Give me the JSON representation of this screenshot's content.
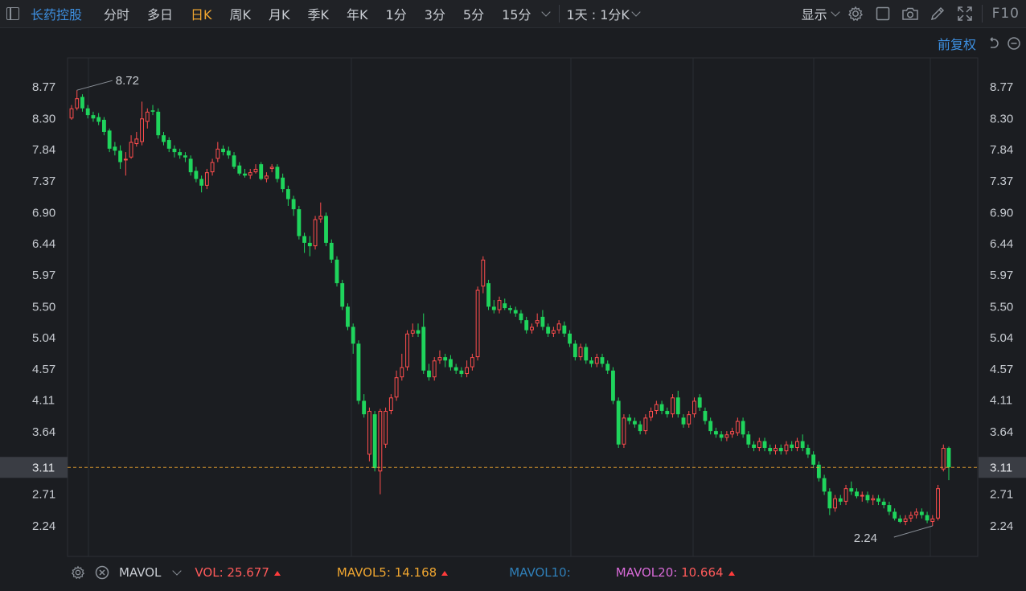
{
  "toolbar": {
    "stock_name": "长药控股",
    "tabs": [
      "分时",
      "多日",
      "日K",
      "周K",
      "月K",
      "季K",
      "年K",
      "1分",
      "3分",
      "5分",
      "15分"
    ],
    "active_tab": "日K",
    "interval_select": "1天 : 1分K",
    "display_label": "显示",
    "f10_label": "F10"
  },
  "subbar": {
    "adjust_label": "前复权"
  },
  "price_axis": {
    "ticks": [
      "8.77",
      "8.30",
      "7.84",
      "7.37",
      "6.90",
      "6.44",
      "5.97",
      "5.50",
      "5.04",
      "4.57",
      "4.11",
      "3.64",
      "3.11",
      "2.71",
      "2.24"
    ],
    "current_price": "3.11"
  },
  "annotations": {
    "high_label": "8.72",
    "low_label": "2.24"
  },
  "volume": {
    "indicator_name": "MAVOL",
    "vol_label": "VOL:",
    "vol_value": "25.677",
    "mavol5_label": "MAVOL5:",
    "mavol5_value": "14.168",
    "mavol10_label": "MAVOL10:",
    "mavol20_label": "MAVOL20:",
    "mavol20_value": "10.664"
  },
  "colors": {
    "up": "#ff4d4d",
    "down": "#1fd45c",
    "accent": "#f0a630",
    "link": "#3d8fe0",
    "vol": "#ff5a5a",
    "mavol5": "#f0a630",
    "mavol10": "#2f7fb8",
    "mavol20": "#d86ad8"
  },
  "chart_data": {
    "type": "candlestick",
    "y_range": [
      2.0,
      8.95
    ],
    "high_marker": 8.72,
    "low_marker": 2.24,
    "last_price": 3.11,
    "candles": [
      [
        8.3,
        8.45,
        8.5,
        8.28
      ],
      [
        8.45,
        8.6,
        8.72,
        8.42
      ],
      [
        8.62,
        8.45,
        8.66,
        8.4
      ],
      [
        8.45,
        8.35,
        8.5,
        8.3
      ],
      [
        8.35,
        8.3,
        8.4,
        8.25
      ],
      [
        8.32,
        8.25,
        8.38,
        8.2
      ],
      [
        8.28,
        8.1,
        8.32,
        8.05
      ],
      [
        8.12,
        7.85,
        8.15,
        7.8
      ],
      [
        7.88,
        7.82,
        7.95,
        7.75
      ],
      [
        7.82,
        7.65,
        7.9,
        7.55
      ],
      [
        7.68,
        7.7,
        7.8,
        7.45
      ],
      [
        7.72,
        7.95,
        8.05,
        7.7
      ],
      [
        7.92,
        8.0,
        8.1,
        7.88
      ],
      [
        7.95,
        8.3,
        8.55,
        7.9
      ],
      [
        8.25,
        8.4,
        8.45,
        8.15
      ],
      [
        8.42,
        8.4,
        8.5,
        8.35
      ],
      [
        8.4,
        8.05,
        8.45,
        8.0
      ],
      [
        8.05,
        7.95,
        8.1,
        7.9
      ],
      [
        7.98,
        7.85,
        8.02,
        7.8
      ],
      [
        7.85,
        7.8,
        7.9,
        7.72
      ],
      [
        7.8,
        7.75,
        7.85,
        7.7
      ],
      [
        7.75,
        7.72,
        7.8,
        7.65
      ],
      [
        7.7,
        7.5,
        7.75,
        7.45
      ],
      [
        7.52,
        7.4,
        7.58,
        7.35
      ],
      [
        7.4,
        7.3,
        7.45,
        7.2
      ],
      [
        7.3,
        7.5,
        7.55,
        7.25
      ],
      [
        7.5,
        7.65,
        7.7,
        7.45
      ],
      [
        7.7,
        7.85,
        7.95,
        7.65
      ],
      [
        7.85,
        7.8,
        7.9,
        7.75
      ],
      [
        7.82,
        7.75,
        7.88,
        7.7
      ],
      [
        7.75,
        7.58,
        7.8,
        7.55
      ],
      [
        7.6,
        7.48,
        7.65,
        7.45
      ],
      [
        7.48,
        7.45,
        7.55,
        7.42
      ],
      [
        7.45,
        7.5,
        7.55,
        7.4
      ],
      [
        7.5,
        7.55,
        7.62,
        7.48
      ],
      [
        7.62,
        7.4,
        7.65,
        7.38
      ],
      [
        7.4,
        7.45,
        7.5,
        7.35
      ],
      [
        7.55,
        7.58,
        7.62,
        7.5
      ],
      [
        7.58,
        7.4,
        7.62,
        7.35
      ],
      [
        7.42,
        7.25,
        7.48,
        7.2
      ],
      [
        7.25,
        7.1,
        7.3,
        7.0
      ],
      [
        7.1,
        6.95,
        7.15,
        6.85
      ],
      [
        6.95,
        6.55,
        7.0,
        6.5
      ],
      [
        6.55,
        6.45,
        6.6,
        6.3
      ],
      [
        6.45,
        6.4,
        6.55,
        6.25
      ],
      [
        6.4,
        6.8,
        6.85,
        6.35
      ],
      [
        6.8,
        6.85,
        7.05,
        6.75
      ],
      [
        6.85,
        6.45,
        6.9,
        6.4
      ],
      [
        6.45,
        6.2,
        6.5,
        6.15
      ],
      [
        6.2,
        5.85,
        6.25,
        5.8
      ],
      [
        5.85,
        5.5,
        5.9,
        5.45
      ],
      [
        5.5,
        5.2,
        5.55,
        5.15
      ],
      [
        5.2,
        4.95,
        5.25,
        4.8
      ],
      [
        4.95,
        4.1,
        5.0,
        4.05
      ],
      [
        4.1,
        3.9,
        4.2,
        3.85
      ],
      [
        3.3,
        3.95,
        4.0,
        3.2
      ],
      [
        3.9,
        3.1,
        3.95,
        3.05
      ],
      [
        3.05,
        3.95,
        3.98,
        2.71
      ],
      [
        3.45,
        3.95,
        4.0,
        3.4
      ],
      [
        3.95,
        4.15,
        4.2,
        3.9
      ],
      [
        4.15,
        4.45,
        4.55,
        4.1
      ],
      [
        4.45,
        4.6,
        4.8,
        4.4
      ],
      [
        4.6,
        5.1,
        5.15,
        4.55
      ],
      [
        5.1,
        5.15,
        5.25,
        5.05
      ],
      [
        5.15,
        5.1,
        5.25,
        5.05
      ],
      [
        5.2,
        4.55,
        5.4,
        4.5
      ],
      [
        4.55,
        4.45,
        4.65,
        4.4
      ],
      [
        4.45,
        4.7,
        4.75,
        4.4
      ],
      [
        4.7,
        4.75,
        4.85,
        4.65
      ],
      [
        4.75,
        4.7,
        4.8,
        4.6
      ],
      [
        4.72,
        4.6,
        4.78,
        4.55
      ],
      [
        4.6,
        4.55,
        4.65,
        4.5
      ],
      [
        4.55,
        4.5,
        4.6,
        4.45
      ],
      [
        4.5,
        4.6,
        4.7,
        4.45
      ],
      [
        4.6,
        4.75,
        4.8,
        4.55
      ],
      [
        4.75,
        5.75,
        5.8,
        4.7
      ],
      [
        5.8,
        6.2,
        6.25,
        5.7
      ],
      [
        5.85,
        5.5,
        5.9,
        5.45
      ],
      [
        5.5,
        5.45,
        5.6,
        5.4
      ],
      [
        5.45,
        5.6,
        5.65,
        5.4
      ],
      [
        5.55,
        5.48,
        5.62,
        5.45
      ],
      [
        5.48,
        5.45,
        5.52,
        5.4
      ],
      [
        5.45,
        5.4,
        5.5,
        5.35
      ],
      [
        5.4,
        5.3,
        5.45,
        5.25
      ],
      [
        5.3,
        5.15,
        5.35,
        5.1
      ],
      [
        5.15,
        5.2,
        5.25,
        5.1
      ],
      [
        5.25,
        5.3,
        5.4,
        5.2
      ],
      [
        5.35,
        5.2,
        5.45,
        5.15
      ],
      [
        5.2,
        5.1,
        5.25,
        5.05
      ],
      [
        5.1,
        5.15,
        5.2,
        5.05
      ],
      [
        5.15,
        5.25,
        5.3,
        5.1
      ],
      [
        5.22,
        5.1,
        5.28,
        5.05
      ],
      [
        5.1,
        4.95,
        5.15,
        4.9
      ],
      [
        4.95,
        4.75,
        5.0,
        4.7
      ],
      [
        4.75,
        4.9,
        4.95,
        4.7
      ],
      [
        4.9,
        4.7,
        4.95,
        4.65
      ],
      [
        4.7,
        4.65,
        4.75,
        4.6
      ],
      [
        4.65,
        4.75,
        4.8,
        4.6
      ],
      [
        4.75,
        4.65,
        4.8,
        4.6
      ],
      [
        4.65,
        4.55,
        4.7,
        4.5
      ],
      [
        4.55,
        4.1,
        4.6,
        4.05
      ],
      [
        4.1,
        3.45,
        4.15,
        3.4
      ],
      [
        3.45,
        3.85,
        3.9,
        3.4
      ],
      [
        3.85,
        3.8,
        3.9,
        3.75
      ],
      [
        3.8,
        3.75,
        3.85,
        3.7
      ],
      [
        3.75,
        3.65,
        3.8,
        3.6
      ],
      [
        3.65,
        3.85,
        3.9,
        3.6
      ],
      [
        3.85,
        3.95,
        4.0,
        3.8
      ],
      [
        3.95,
        4.05,
        4.1,
        3.9
      ],
      [
        4.05,
        3.95,
        4.1,
        3.9
      ],
      [
        3.95,
        3.9,
        4.0,
        3.85
      ],
      [
        3.9,
        4.15,
        4.2,
        3.85
      ],
      [
        4.15,
        3.9,
        4.25,
        3.85
      ],
      [
        3.85,
        3.75,
        3.9,
        3.7
      ],
      [
        3.75,
        3.9,
        3.95,
        3.7
      ],
      [
        3.9,
        4.1,
        4.15,
        3.85
      ],
      [
        4.15,
        4.0,
        4.2,
        3.95
      ],
      [
        3.95,
        3.8,
        4.0,
        3.75
      ],
      [
        3.8,
        3.65,
        3.85,
        3.6
      ],
      [
        3.65,
        3.6,
        3.7,
        3.55
      ],
      [
        3.6,
        3.55,
        3.65,
        3.5
      ],
      [
        3.55,
        3.6,
        3.65,
        3.5
      ],
      [
        3.6,
        3.65,
        3.7,
        3.55
      ],
      [
        3.62,
        3.8,
        3.85,
        3.58
      ],
      [
        3.8,
        3.6,
        3.85,
        3.55
      ],
      [
        3.6,
        3.45,
        3.65,
        3.4
      ],
      [
        3.45,
        3.4,
        3.5,
        3.35
      ],
      [
        3.4,
        3.5,
        3.55,
        3.35
      ],
      [
        3.5,
        3.4,
        3.55,
        3.35
      ],
      [
        3.4,
        3.35,
        3.45,
        3.3
      ],
      [
        3.35,
        3.4,
        3.45,
        3.3
      ],
      [
        3.4,
        3.35,
        3.45,
        3.3
      ],
      [
        3.35,
        3.45,
        3.5,
        3.3
      ],
      [
        3.45,
        3.4,
        3.5,
        3.35
      ],
      [
        3.4,
        3.5,
        3.55,
        3.35
      ],
      [
        3.5,
        3.4,
        3.6,
        3.35
      ],
      [
        3.4,
        3.3,
        3.45,
        3.25
      ],
      [
        3.3,
        3.15,
        3.35,
        3.1
      ],
      [
        3.15,
        2.95,
        3.2,
        2.9
      ],
      [
        2.95,
        2.75,
        3.0,
        2.7
      ],
      [
        2.75,
        2.5,
        2.8,
        2.4
      ],
      [
        2.5,
        2.65,
        2.7,
        2.45
      ],
      [
        2.65,
        2.6,
        2.7,
        2.55
      ],
      [
        2.6,
        2.8,
        2.85,
        2.55
      ],
      [
        2.8,
        2.75,
        2.9,
        2.7
      ],
      [
        2.75,
        2.68,
        2.8,
        2.65
      ],
      [
        2.68,
        2.7,
        2.75,
        2.6
      ],
      [
        2.7,
        2.62,
        2.75,
        2.58
      ],
      [
        2.62,
        2.65,
        2.7,
        2.55
      ],
      [
        2.65,
        2.6,
        2.7,
        2.55
      ],
      [
        2.6,
        2.55,
        2.65,
        2.5
      ],
      [
        2.55,
        2.45,
        2.6,
        2.4
      ],
      [
        2.45,
        2.35,
        2.5,
        2.32
      ],
      [
        2.35,
        2.3,
        2.4,
        2.28
      ],
      [
        2.3,
        2.35,
        2.4,
        2.25
      ],
      [
        2.35,
        2.4,
        2.45,
        2.3
      ],
      [
        2.4,
        2.45,
        2.5,
        2.35
      ],
      [
        2.45,
        2.4,
        2.5,
        2.35
      ],
      [
        2.4,
        2.32,
        2.45,
        2.28
      ],
      [
        2.3,
        2.35,
        2.4,
        2.24
      ],
      [
        2.35,
        2.8,
        2.85,
        2.32
      ],
      [
        3.08,
        3.4,
        3.45,
        3.05
      ],
      [
        3.4,
        3.11,
        3.42,
        2.92
      ]
    ]
  }
}
